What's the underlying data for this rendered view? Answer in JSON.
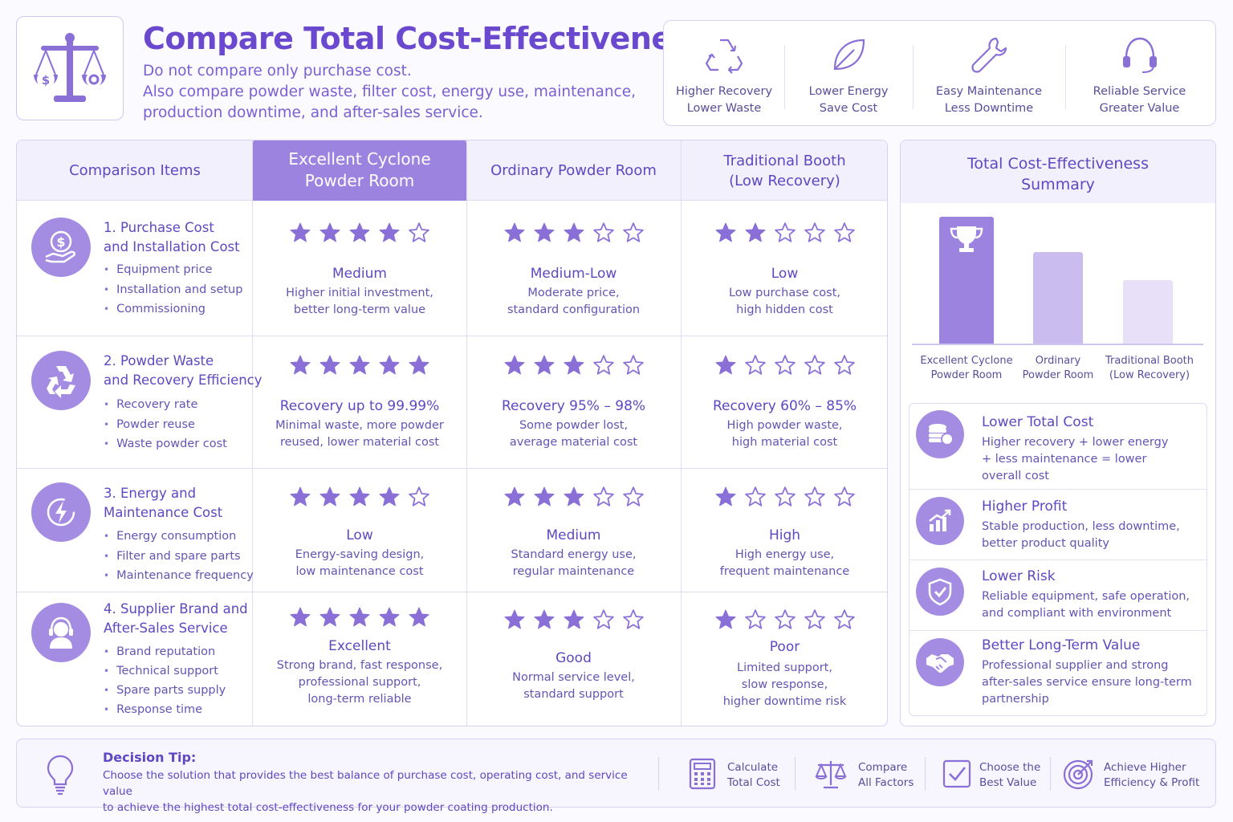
{
  "header": {
    "title": "Compare Total Cost-Effectiveness",
    "subtitle_line1": "Do not compare only purchase cost.",
    "subtitle_line2": "Also compare powder waste, filter cost, energy use, maintenance, production downtime, and after-sales service.",
    "logo_icon": "balance-scale-icon"
  },
  "features": [
    {
      "icon": "recycle-icon",
      "line1": "Higher Recovery",
      "line2": "Lower Waste"
    },
    {
      "icon": "leaf-icon",
      "line1": "Lower Energy",
      "line2": "Save Cost"
    },
    {
      "icon": "wrench-icon",
      "line1": "Easy Maintenance",
      "line2": "Less Downtime"
    },
    {
      "icon": "headset-icon",
      "line1": "Reliable Service",
      "line2": "Greater Value"
    }
  ],
  "table": {
    "headers": {
      "items": "Comparison Items",
      "col1_line1": "Excellent Cyclone",
      "col1_line2": "Powder Room",
      "col2": "Ordinary Powder Room",
      "col3_line1": "Traditional Booth",
      "col3_line2": "(Low Recovery)"
    },
    "rows": [
      {
        "icon": "money-hand-icon",
        "title_line1": "1. Purchase Cost",
        "title_line2": "and Installation Cost",
        "bullets": [
          "Equipment price",
          "Installation and setup",
          "Commissioning"
        ],
        "cells": [
          {
            "stars": 4,
            "rating": "Medium",
            "desc1": "Higher initial investment,",
            "desc2": "better long-term value",
            "desc3": ""
          },
          {
            "stars": 3,
            "rating": "Medium-Low",
            "desc1": "Moderate price,",
            "desc2": "standard configuration",
            "desc3": ""
          },
          {
            "stars": 2,
            "rating": "Low",
            "desc1": "Low purchase cost,",
            "desc2": "high hidden cost",
            "desc3": ""
          }
        ]
      },
      {
        "icon": "recycle-icon",
        "title_line1": "2. Powder Waste",
        "title_line2": "and Recovery Efficiency",
        "bullets": [
          "Recovery rate",
          "Powder reuse",
          "Waste powder cost"
        ],
        "cells": [
          {
            "stars": 5,
            "rating": "Recovery up to 99.99%",
            "desc1": "Minimal waste, more powder",
            "desc2": "reused, lower material cost",
            "desc3": ""
          },
          {
            "stars": 3,
            "rating": "Recovery 95% – 98%",
            "desc1": "Some powder lost,",
            "desc2": "average material cost",
            "desc3": ""
          },
          {
            "stars": 1,
            "rating": "Recovery 60% – 85%",
            "desc1": "High powder waste,",
            "desc2": "high material cost",
            "desc3": ""
          }
        ]
      },
      {
        "icon": "energy-icon",
        "title_line1": "3. Energy and",
        "title_line2": "Maintenance Cost",
        "bullets": [
          "Energy consumption",
          "Filter and spare parts",
          "Maintenance frequency"
        ],
        "cells": [
          {
            "stars": 4,
            "rating": "Low",
            "desc1": "Energy-saving design,",
            "desc2": "low maintenance cost",
            "desc3": ""
          },
          {
            "stars": 3,
            "rating": "Medium",
            "desc1": "Standard energy use,",
            "desc2": "regular maintenance",
            "desc3": ""
          },
          {
            "stars": 1,
            "rating": "High",
            "desc1": "High energy use,",
            "desc2": "frequent maintenance",
            "desc3": ""
          }
        ]
      },
      {
        "icon": "support-agent-icon",
        "title_line1": "4. Supplier Brand and",
        "title_line2": "After-Sales Service",
        "bullets": [
          "Brand reputation",
          "Technical support",
          "Spare parts supply",
          "Response time"
        ],
        "cells": [
          {
            "stars": 5,
            "rating": "Excellent",
            "desc1": "Strong brand, fast response,",
            "desc2": "professional support,",
            "desc3": "long-term reliable"
          },
          {
            "stars": 3,
            "rating": "Good",
            "desc1": "Normal service level,",
            "desc2": "standard support",
            "desc3": ""
          },
          {
            "stars": 1,
            "rating": "Poor",
            "desc1": "Limited support,",
            "desc2": "slow response,",
            "desc3": "higher downtime risk"
          }
        ]
      }
    ]
  },
  "summary": {
    "title_line1": "Total Cost-Effectiveness",
    "title_line2": "Summary",
    "bars": [
      {
        "label1": "Excellent Cyclone",
        "label2": "Powder Room",
        "level": 1.0,
        "color": "#9c83e0"
      },
      {
        "label1": "Ordinary",
        "label2": "Powder Room",
        "level": 0.72,
        "color": "#cbbcf0"
      },
      {
        "label1": "Traditional Booth",
        "label2": "(Low Recovery)",
        "level": 0.5,
        "color": "#e7e0f8"
      }
    ],
    "benefits": [
      {
        "icon": "coins-icon",
        "title": "Lower Total Cost",
        "d1": "Higher recovery + lower energy",
        "d2": "+ less maintenance = lower",
        "d3": "overall cost"
      },
      {
        "icon": "growth-chart-icon",
        "title": "Higher Profit",
        "d1": "Stable production, less downtime,",
        "d2": "better product quality",
        "d3": ""
      },
      {
        "icon": "shield-check-icon",
        "title": "Lower Risk",
        "d1": "Reliable equipment, safe operation,",
        "d2": "and compliant with environment",
        "d3": ""
      },
      {
        "icon": "handshake-icon",
        "title": "Better Long-Term Value",
        "d1": "Professional supplier and strong",
        "d2": "after-sales service ensure long-term",
        "d3": "partnership"
      }
    ]
  },
  "footer": {
    "tip_title": "Decision Tip:",
    "tip_line1": "Choose the solution that provides the best balance of purchase cost, operating cost, and service value",
    "tip_line2": "to achieve the highest total cost-effectiveness for your powder coating production.",
    "factors": [
      {
        "icon": "calculator-icon",
        "line1": "Calculate",
        "line2": "Total Cost"
      },
      {
        "icon": "scale-icon",
        "line1": "Compare",
        "line2": "All Factors"
      },
      {
        "icon": "checkbox-icon",
        "line1": "Choose the",
        "line2": "Best Value"
      },
      {
        "icon": "target-icon",
        "line1": "Achieve Higher",
        "line2": "Efficiency & Profit"
      }
    ]
  },
  "colors": {
    "accent": "#6a49cf",
    "icon_fill": "#a58ce3",
    "header_highlight": "#9c83e0",
    "star": "#8a6fd6"
  }
}
